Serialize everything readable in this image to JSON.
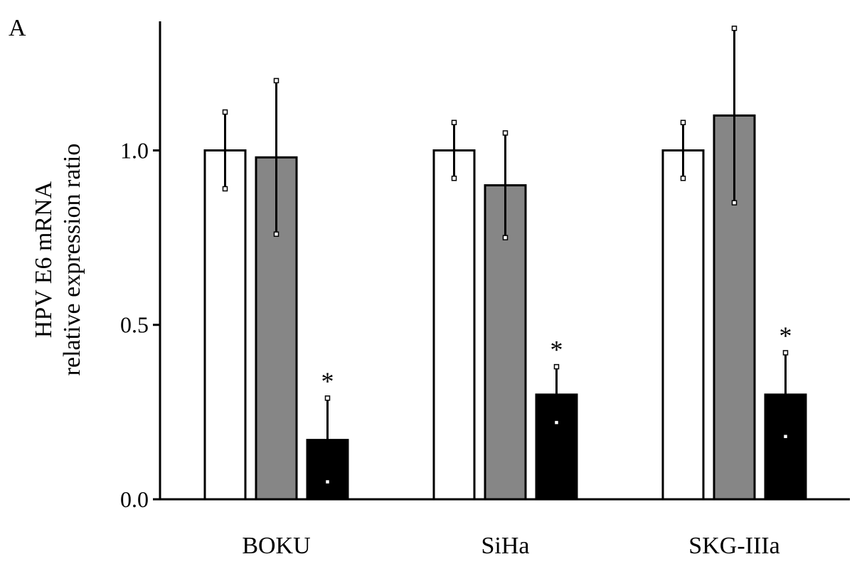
{
  "panel_label": "A",
  "chart_data": {
    "type": "bar",
    "categories": [
      "BOKU",
      "SiHa",
      "SKG-IIIa"
    ],
    "ylabel_lines": [
      "HPV E6  mRNA",
      "relative expression ratio"
    ],
    "xlabel": "",
    "ylim": [
      0,
      1.37
    ],
    "yticks": [
      0.0,
      0.5,
      1.0
    ],
    "ytick_labels": [
      "0.0",
      "0.5",
      "1.0"
    ],
    "grid": false,
    "legend": "none",
    "series": [
      {
        "color": "#ffffff",
        "values": [
          1.0,
          1.0,
          1.0
        ],
        "errors": [
          0.11,
          0.08,
          0.08
        ],
        "annotations": [
          "",
          "",
          ""
        ]
      },
      {
        "color": "#868686",
        "values": [
          0.98,
          0.9,
          1.1
        ],
        "errors": [
          0.22,
          0.15,
          0.25
        ],
        "annotations": [
          "",
          "",
          ""
        ]
      },
      {
        "color": "#000000",
        "values": [
          0.17,
          0.3,
          0.3
        ],
        "errors": [
          0.12,
          0.08,
          0.12
        ],
        "annotations": [
          "*",
          "*",
          "*"
        ]
      }
    ]
  }
}
